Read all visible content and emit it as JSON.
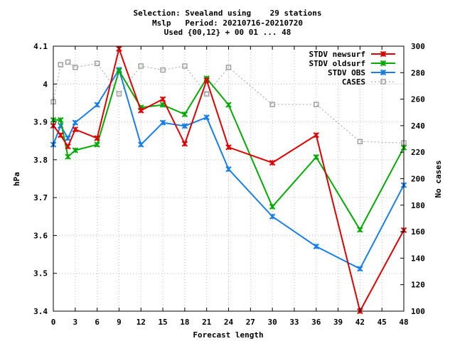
{
  "chart_data": {
    "type": "line",
    "title_lines": [
      "Selection: Svealand using    29 stations",
      "Mslp   Period: 20210716-20210720",
      "Used {00,12} + 00 01 ... 48"
    ],
    "xlabel": "Forecast length",
    "ylabel": "hPa",
    "y2label": "No cases",
    "xlim": [
      0,
      48
    ],
    "ylim": [
      3.4,
      4.1
    ],
    "y2lim": [
      100,
      300
    ],
    "x_ticks": [
      "0",
      "3",
      "6",
      "9",
      "12",
      "15",
      "18",
      "21",
      "24",
      "27",
      "30",
      "33",
      "36",
      "39",
      "42",
      "45",
      "48"
    ],
    "y_ticks": [
      "3.4",
      "3.5",
      "3.6",
      "3.7",
      "3.8",
      "3.9",
      "4",
      "4.1"
    ],
    "y2_ticks": [
      "100",
      "120",
      "140",
      "160",
      "180",
      "200",
      "220",
      "240",
      "260",
      "280",
      "300"
    ],
    "grid": true,
    "legend_position": "top-right",
    "series": [
      {
        "name": "STDV newsurf",
        "color": "#dd0000",
        "axis": "left",
        "marker": "x",
        "x": [
          0,
          1,
          2,
          3,
          6,
          9,
          12,
          15,
          18,
          21,
          24,
          30,
          36,
          42,
          48
        ],
        "values": [
          3.89,
          3.865,
          3.835,
          3.88,
          3.857,
          4.093,
          3.93,
          3.96,
          3.842,
          4.01,
          3.833,
          3.792,
          3.865,
          3.4,
          3.614
        ]
      },
      {
        "name": "STDV oldsurf",
        "color": "#00aa00",
        "axis": "left",
        "marker": "x",
        "x": [
          0,
          1,
          2,
          3,
          6,
          9,
          12,
          15,
          18,
          21,
          24,
          30,
          36,
          42,
          48
        ],
        "values": [
          3.905,
          3.905,
          3.808,
          3.825,
          3.84,
          4.035,
          3.938,
          3.945,
          3.92,
          4.015,
          3.945,
          3.676,
          3.807,
          3.615,
          3.832
        ]
      },
      {
        "name": "STDV OBS",
        "color": "#1a7ee8",
        "axis": "left",
        "marker": "x",
        "x": [
          0,
          1,
          2,
          3,
          6,
          9,
          12,
          15,
          18,
          21,
          24,
          30,
          36,
          42,
          48
        ],
        "values": [
          3.84,
          3.89,
          3.857,
          3.898,
          3.945,
          4.038,
          3.84,
          3.898,
          3.889,
          3.912,
          3.775,
          3.65,
          3.571,
          3.512,
          3.733
        ]
      },
      {
        "name": "CASES",
        "color": "#a0a0a0",
        "axis": "right",
        "marker": "square",
        "dashed": true,
        "x": [
          0,
          1,
          2,
          3,
          6,
          9,
          12,
          15,
          18,
          21,
          24,
          30,
          36,
          42,
          48
        ],
        "values": [
          258,
          286,
          288,
          284,
          287,
          264,
          285,
          282,
          285,
          264,
          284,
          256,
          256,
          228,
          227
        ]
      }
    ]
  }
}
